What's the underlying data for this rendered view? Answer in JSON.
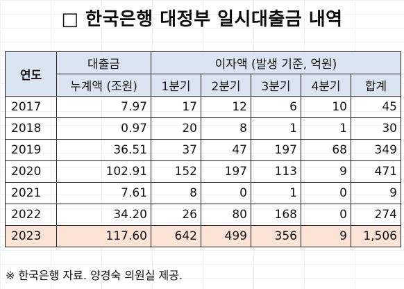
{
  "title": "□ 한국은행 대정부 일시대출금 내역",
  "table": {
    "header": {
      "year": "연도",
      "loan_line1": "대출금",
      "loan_line2": "누계액 (조원)",
      "interest_group": "이자액 (발생 기준, 억원)",
      "q1": "1분기",
      "q2": "2분기",
      "q3": "3분기",
      "q4": "4분기",
      "total": "합계"
    },
    "rows": [
      {
        "year": "2017",
        "loan": "7.97",
        "q1": "17",
        "q2": "12",
        "q3": "6",
        "q4": "10",
        "total": "45"
      },
      {
        "year": "2018",
        "loan": "0.97",
        "q1": "20",
        "q2": "8",
        "q3": "1",
        "q4": "1",
        "total": "30"
      },
      {
        "year": "2019",
        "loan": "36.51",
        "q1": "37",
        "q2": "47",
        "q3": "197",
        "q4": "68",
        "total": "349"
      },
      {
        "year": "2020",
        "loan": "102.91",
        "q1": "152",
        "q2": "197",
        "q3": "113",
        "q4": "9",
        "total": "471"
      },
      {
        "year": "2021",
        "loan": "7.61",
        "q1": "8",
        "q2": "0",
        "q3": "1",
        "q4": "0",
        "total": "9"
      },
      {
        "year": "2022",
        "loan": "34.20",
        "q1": "26",
        "q2": "80",
        "q3": "168",
        "q4": "0",
        "total": "274"
      },
      {
        "year": "2023",
        "loan": "117.60",
        "q1": "642",
        "q2": "499",
        "q3": "356",
        "q4": "9",
        "total": "1,506"
      }
    ]
  },
  "note": "※ 한국은행 자료. 양경숙 의원실 제공.",
  "colors": {
    "header_bg": "#dbe5f1",
    "highlight_bg": "#fbe4d6",
    "border": "#1c1c1c"
  }
}
